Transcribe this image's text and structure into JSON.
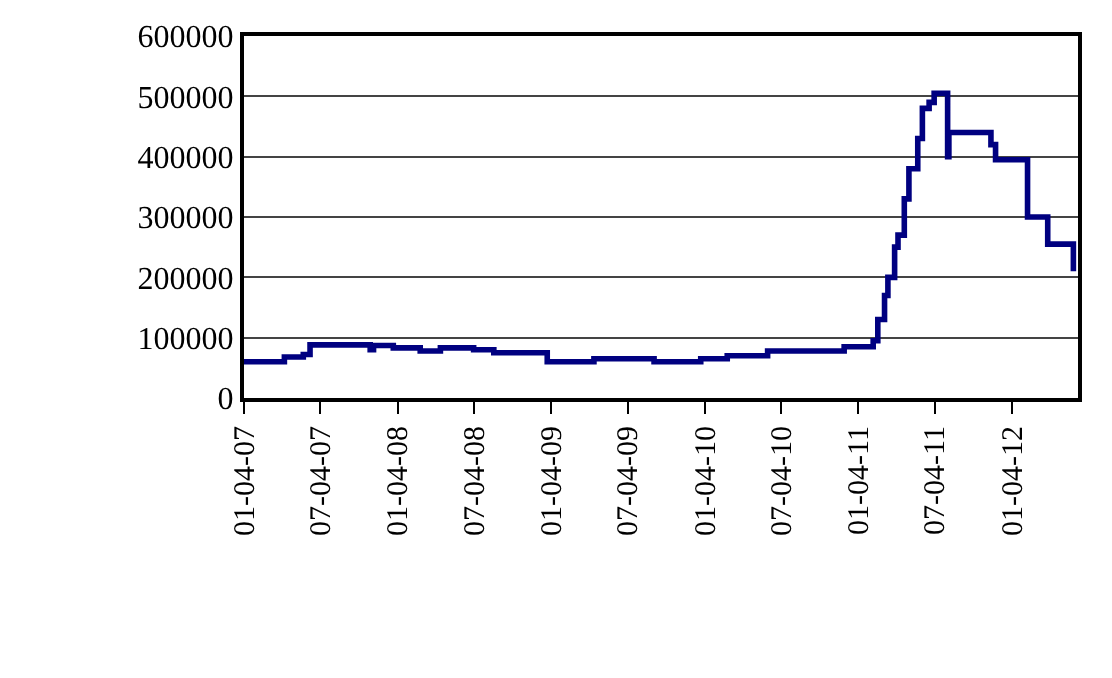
{
  "chart_data": {
    "type": "step",
    "x": [
      "2007-01-04",
      "2007-04-10",
      "2007-05-25",
      "2007-06-10",
      "2007-10-31",
      "2007-11-08",
      "2007-12-25",
      "2008-02-27",
      "2008-04-15",
      "2008-07-03",
      "2008-08-20",
      "2008-12-25",
      "2009-04-15",
      "2009-09-05",
      "2009-12-25",
      "2010-02-26",
      "2010-06-02",
      "2010-12-01",
      "2011-02-08",
      "2011-02-19",
      "2011-03-07",
      "2011-03-15",
      "2011-03-31",
      "2011-04-08",
      "2011-04-23",
      "2011-05-04",
      "2011-05-25",
      "2011-06-05",
      "2011-06-21",
      "2011-07-03",
      "2011-08-04",
      "2011-08-07",
      "2011-11-15",
      "2011-11-26",
      "2012-02-10",
      "2012-03-29",
      "2012-05-29"
    ],
    "series": [
      {
        "color": "#000080",
        "values": [
          60000,
          68000,
          72000,
          88000,
          80000,
          87000,
          83000,
          78000,
          83000,
          80000,
          75000,
          60000,
          65000,
          60000,
          65000,
          70000,
          78000,
          85000,
          95000,
          130000,
          170000,
          200000,
          250000,
          270000,
          330000,
          380000,
          430000,
          480000,
          490000,
          505000,
          400000,
          440000,
          420000,
          395000,
          300000,
          255000,
          210000
        ]
      }
    ],
    "xlim": [
      "2007-01-04",
      "2012-06-09"
    ],
    "xticks": [
      {
        "value": "2007-01-04",
        "label": "01-04-07"
      },
      {
        "value": "2007-07-04",
        "label": "07-04-07"
      },
      {
        "value": "2008-01-04",
        "label": "01-04-08"
      },
      {
        "value": "2008-07-04",
        "label": "07-04-08"
      },
      {
        "value": "2009-01-04",
        "label": "01-04-09"
      },
      {
        "value": "2009-07-04",
        "label": "07-04-09"
      },
      {
        "value": "2010-01-04",
        "label": "01-04-10"
      },
      {
        "value": "2010-07-04",
        "label": "07-04-10"
      },
      {
        "value": "2011-01-04",
        "label": "01-04-11"
      },
      {
        "value": "2011-07-04",
        "label": "07-04-11"
      },
      {
        "value": "2012-01-04",
        "label": "01-04-12"
      }
    ],
    "ylim": [
      0,
      600000
    ],
    "yticks": [
      0,
      100000,
      200000,
      300000,
      400000,
      500000,
      600000
    ],
    "grid": "y"
  }
}
